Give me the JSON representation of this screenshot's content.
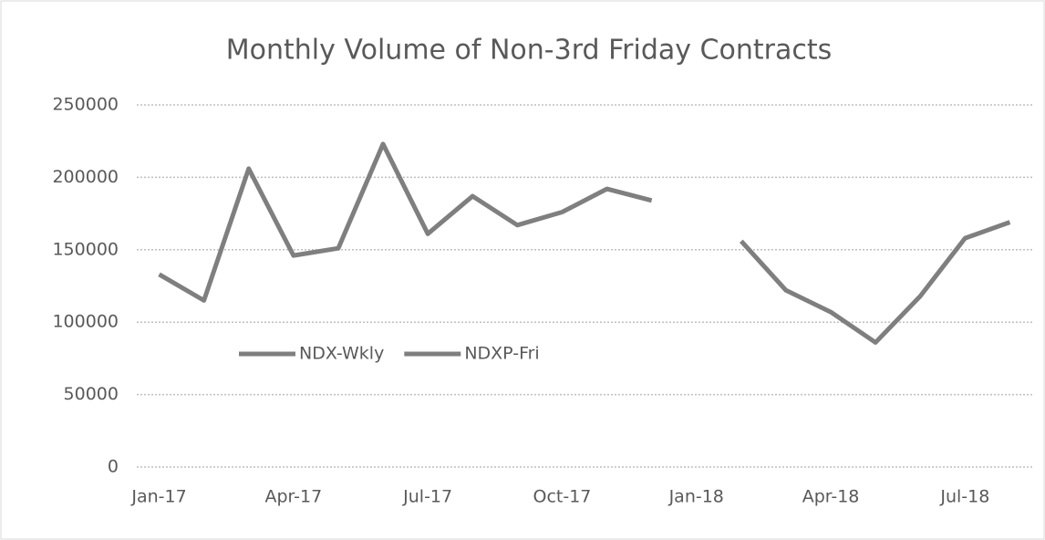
{
  "chart_data": {
    "type": "line",
    "title": "Monthly Volume of Non-3rd Friday Contracts",
    "categories": [
      "Jan-17",
      null,
      null,
      "Apr-17",
      null,
      null,
      "Jul-17",
      null,
      null,
      "Oct-17",
      null,
      null,
      "Jan-18",
      null,
      null,
      "Apr-18",
      null,
      null,
      "Jul-18",
      null
    ],
    "series": [
      {
        "name": "NDX-Wkly",
        "color": "#7f7f7f",
        "values": [
          133000,
          115000,
          206000,
          146000,
          151000,
          223000,
          161000,
          187000,
          167000,
          176000,
          192000,
          184000,
          null,
          null,
          null,
          null,
          null,
          null,
          null,
          null
        ]
      },
      {
        "name": "NDXP-Fri",
        "color": "#7f7f7f",
        "values": [
          null,
          null,
          null,
          null,
          null,
          null,
          null,
          null,
          null,
          null,
          null,
          null,
          null,
          156000,
          122000,
          107000,
          86000,
          118000,
          158000,
          169000
        ]
      }
    ],
    "ylim": [
      0,
      250000
    ],
    "yticks": [
      0,
      50000,
      100000,
      150000,
      200000,
      250000
    ],
    "grid": true,
    "legend": "left"
  }
}
